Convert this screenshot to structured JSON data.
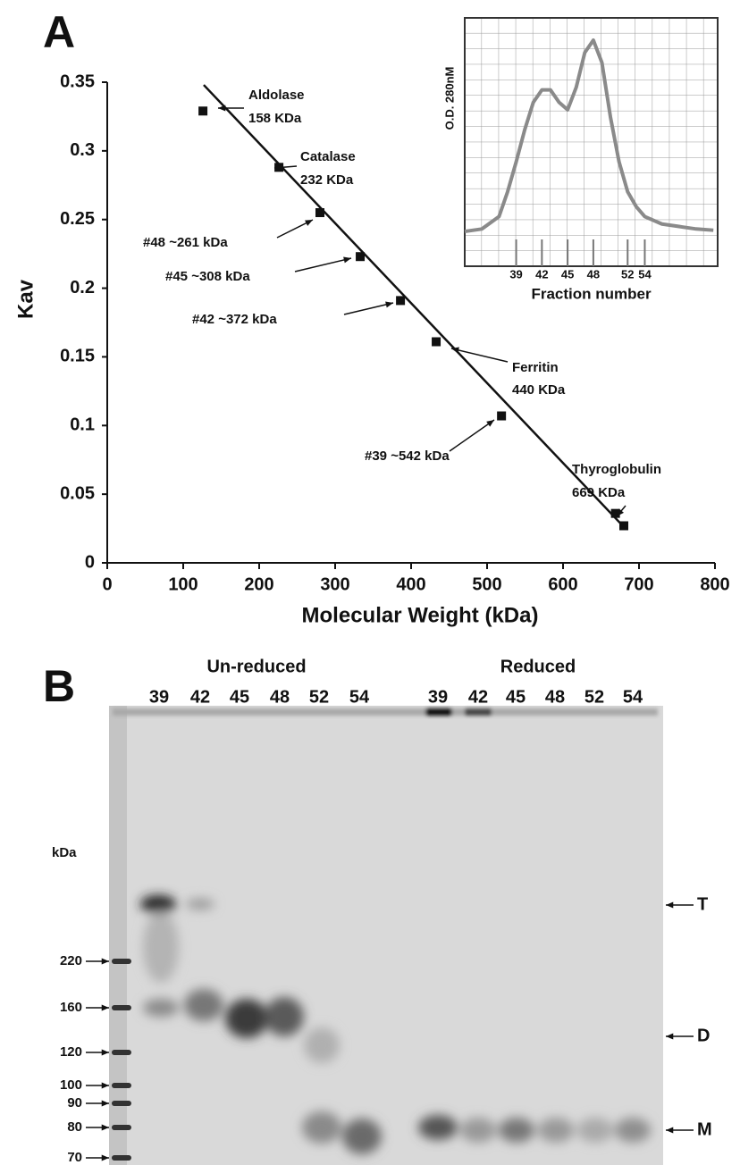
{
  "chart_data": [
    {
      "type": "scatter",
      "panel_label": "A",
      "xlabel": "Molecular Weight (kDa)",
      "ylabel": "Kav",
      "xlim": [
        0,
        800
      ],
      "ylim": [
        0,
        0.35
      ],
      "xticks": [
        0,
        100,
        200,
        300,
        400,
        500,
        600,
        700,
        800
      ],
      "yticks": [
        0,
        0.05,
        0.1,
        0.15,
        0.2,
        0.25,
        0.3,
        0.35
      ],
      "series": [
        {
          "color": "#111111",
          "marker": "square",
          "line": false,
          "x": [
            126,
            226,
            280,
            333,
            386,
            433,
            519,
            669,
            680
          ],
          "values": [
            0.329,
            0.288,
            0.255,
            0.223,
            0.191,
            0.161,
            0.107,
            0.036,
            0.027
          ]
        },
        {
          "color": "#111111",
          "marker": "none",
          "line": true,
          "x": [
            127,
            682
          ],
          "values": [
            0.348,
            0.025
          ]
        }
      ],
      "annotations": [
        {
          "lines": [
            "Aldolase",
            "158 KDa"
          ]
        },
        {
          "lines": [
            "Catalase",
            "232 KDa"
          ]
        },
        {
          "lines": [
            "#48 ~261 kDa"
          ]
        },
        {
          "lines": [
            "#45 ~308 kDa"
          ]
        },
        {
          "lines": [
            "#42 ~372 kDa"
          ]
        },
        {
          "lines": [
            "Ferritin",
            "440 KDa"
          ]
        },
        {
          "lines": [
            "#39 ~542 kDa"
          ]
        },
        {
          "lines": [
            "Thyroglobulin",
            "669 KDa"
          ]
        }
      ]
    },
    {
      "type": "line",
      "xlabel": "Fraction number",
      "ylabel": "O.D. 280nM",
      "xlim": [
        33,
        62.5
      ],
      "ylim": [
        0,
        1
      ],
      "xticks": [
        39,
        42,
        45,
        48,
        52,
        54
      ],
      "grid": true,
      "series": [
        {
          "color": "#8a8a8a",
          "x": [
            33,
            35,
            37,
            38,
            39,
            40,
            41,
            42,
            43,
            44,
            45,
            46,
            47,
            48,
            49,
            50,
            51,
            52,
            53,
            54,
            56,
            58,
            60,
            62
          ],
          "values": [
            0.14,
            0.15,
            0.2,
            0.3,
            0.42,
            0.55,
            0.66,
            0.71,
            0.71,
            0.66,
            0.63,
            0.72,
            0.86,
            0.91,
            0.82,
            0.6,
            0.42,
            0.3,
            0.24,
            0.2,
            0.17,
            0.16,
            0.15,
            0.145
          ]
        }
      ]
    }
  ],
  "gel": {
    "panel_label": "B",
    "lane_groups": [
      {
        "label": "Un-reduced",
        "lanes": [
          39,
          42,
          45,
          48,
          52,
          54
        ]
      },
      {
        "label": "Reduced",
        "lanes": [
          39,
          42,
          45,
          48,
          52,
          54
        ]
      }
    ],
    "marker_unit": "kDa",
    "markers": [
      220,
      160,
      120,
      100,
      90,
      80,
      70
    ],
    "bands": [
      "T",
      "D",
      "M"
    ]
  }
}
